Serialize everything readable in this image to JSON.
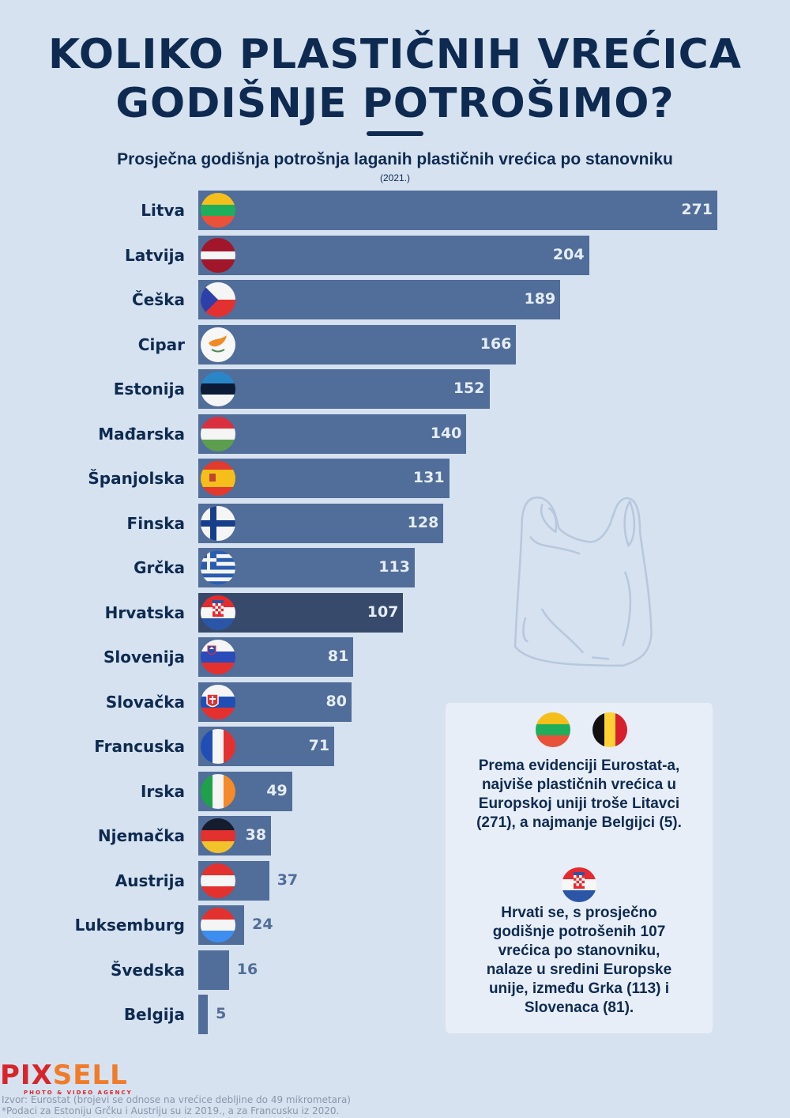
{
  "header": {
    "title_line1": "KOLIKO PLASTIČNIH VREĆICA",
    "title_line2": "GODIŠNJE POTROŠIMO?"
  },
  "chart_data": {
    "type": "bar",
    "orientation": "horizontal",
    "title": "Prosječna godišnja potrošnja laganih plastičnih vrećica po stanovniku",
    "subtitle": "(2021.)",
    "xlabel": "",
    "ylabel": "",
    "xlim": [
      0,
      271
    ],
    "grid": false,
    "legend": "none",
    "highlight": "Hrvatska",
    "categories": [
      "Litva",
      "Latvija",
      "Češka",
      "Cipar",
      "Estonija",
      "Mađarska",
      "Španjolska",
      "Finska",
      "Grčka",
      "Hrvatska",
      "Slovenija",
      "Slovačka",
      "Francuska",
      "Irska",
      "Njemačka",
      "Austrija",
      "Luksemburg",
      "Švedska",
      "Belgija"
    ],
    "values": [
      271,
      204,
      189,
      166,
      152,
      140,
      131,
      128,
      113,
      107,
      81,
      80,
      71,
      49,
      38,
      37,
      24,
      16,
      5
    ],
    "flags": [
      "lithuania",
      "latvia",
      "czechia",
      "cyprus",
      "estonia",
      "hungary",
      "spain",
      "finland",
      "greece",
      "croatia",
      "slovenia",
      "slovakia",
      "france",
      "ireland",
      "germany",
      "austria",
      "luxembourg",
      "none",
      "none"
    ],
    "colors": {
      "bar": "#516d99",
      "highlight_bar": "#374a6b",
      "label_inside": "#e6edf7",
      "label_outside": "#516d99"
    }
  },
  "callout": {
    "flags": [
      "lithuania",
      "belgium",
      "croatia"
    ],
    "text1_lines": [
      "Prema evidenciji Eurostat-a,",
      "najviše plastičnih vrećica u",
      "Europskoj uniji troše Litavci",
      "(271), a najmanje Belgijci (5)."
    ],
    "text2_lines": [
      "Hrvati se, s prosječno",
      "godišnje potrošenih 107",
      "vrećica po stanovniku,",
      "nalaze u sredini Europske",
      "unije, između Grka (113) i",
      "Slovenaca (81)."
    ]
  },
  "footer": {
    "logo_part1": "PIX",
    "logo_part2": "SELL",
    "logo_tagline": "PHOTO & VIDEO AGENCY",
    "source": "Izvor: Eurostat (brojevi se odnose na vrećice debljine do 49 mikrometara)",
    "note": "*Podaci za Estoniju Grčku i Austriju su iz 2019., a za Francusku iz 2020."
  },
  "decor": {
    "background_icon": "plastic-bag-icon"
  }
}
